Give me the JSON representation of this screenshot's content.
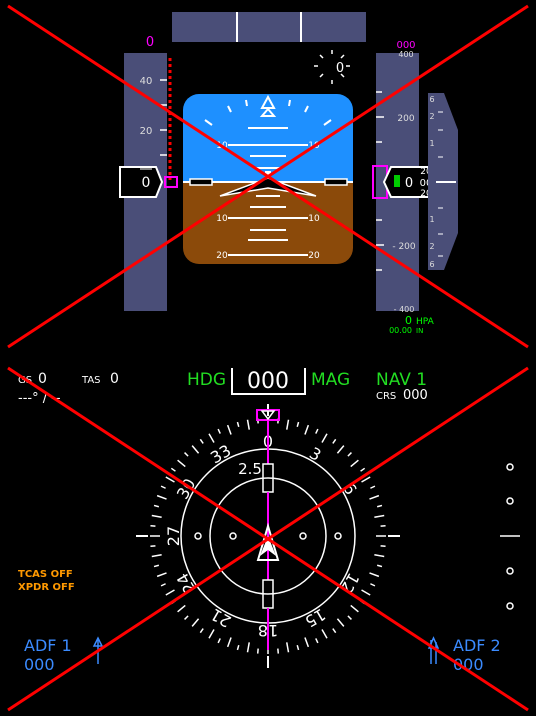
{
  "pfd": {
    "speed_target": "0",
    "speed_current": "0",
    "speed_ticks": [
      "40",
      "20"
    ],
    "pitch_labels": [
      "10",
      "10",
      "10",
      "10",
      "20",
      "20"
    ],
    "altitude_target": "000",
    "altitude_ticks": [
      "400",
      "200",
      "- 200",
      "- 400"
    ],
    "altitude_roller_top": "20",
    "altitude_roller_mid": "00",
    "altitude_roller_bot": "20",
    "altitude_main": "0",
    "altitude_hundreds": "0",
    "vsi_ticks": [
      "6",
      "2",
      "1",
      "1",
      "2",
      "6"
    ],
    "heading_small": "0",
    "baro_value": "0",
    "baro_unit": "HPA",
    "baro_in_value": "00.00",
    "baro_in_unit": "IN",
    "colors": {
      "sky": "#1e90ff",
      "ground": "#8b4a0a",
      "tape": "#4a4e78",
      "magenta": "#ff00ff",
      "green": "#00ff00"
    }
  },
  "nd": {
    "gs_label": "GS",
    "gs_value": "0",
    "tas_label": "TAS",
    "tas_value": "0",
    "wind_text": "---° / --",
    "hdg_label": "HDG",
    "hdg_value": "000",
    "mag_label": "MAG",
    "nav_label": "NAV 1",
    "crs_label": "CRS",
    "crs_value": "000",
    "dme_value": "2.5",
    "compass_labels": [
      "0",
      "3",
      "6",
      "12",
      "15",
      "18",
      "21",
      "24",
      "27",
      "30",
      "33"
    ],
    "tcas_text": "TCAS OFF",
    "xpdr_text": "XPDR OFF",
    "adf1_label": "ADF 1",
    "adf1_value": "000",
    "adf2_label": "ADF 2",
    "adf2_value": "000",
    "colors": {
      "hdg_green": "#22dd22",
      "adf_blue": "#3b8bff",
      "tcas_orange": "#ff9900",
      "magenta": "#ff00ff"
    }
  },
  "overlay": {
    "cross_color": "#ff0000"
  }
}
